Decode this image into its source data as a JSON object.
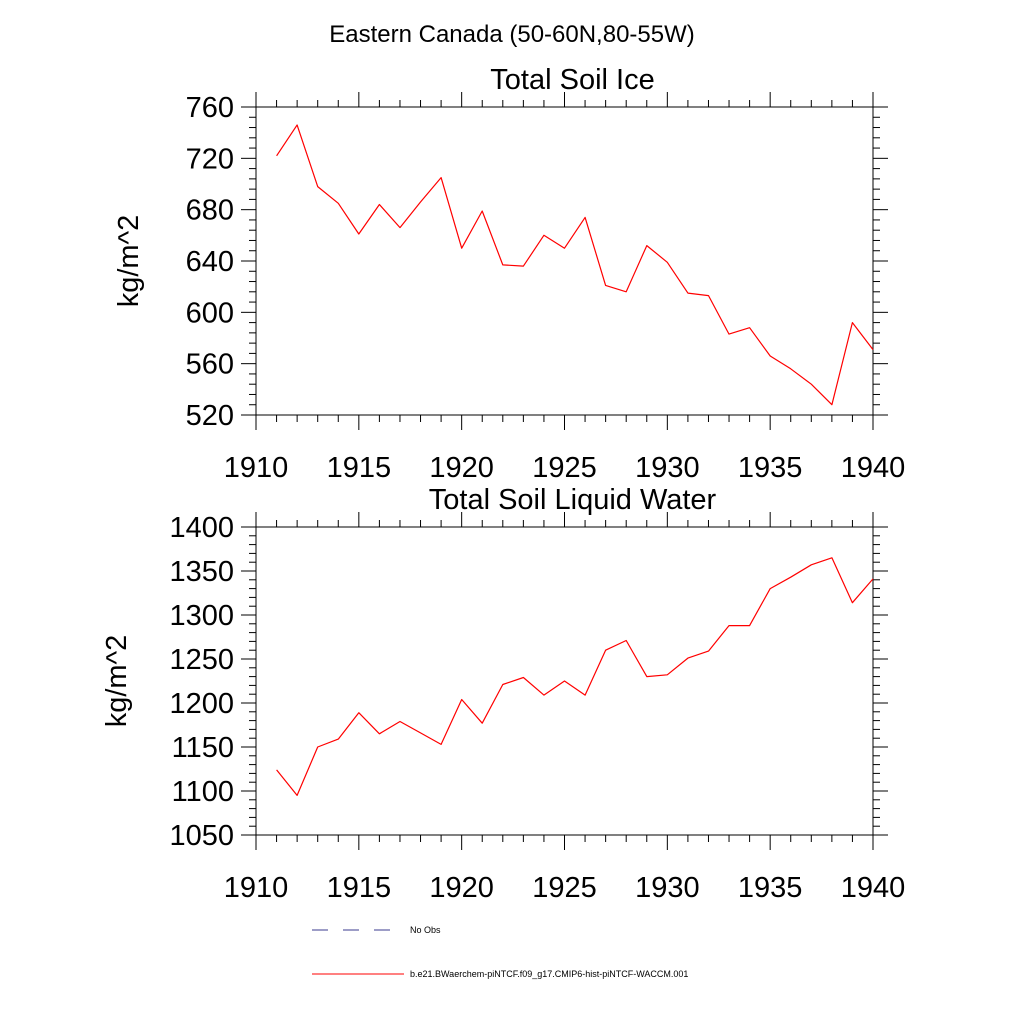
{
  "figure": {
    "title": "Eastern Canada (50-60N,80-55W)"
  },
  "legend": {
    "items": [
      {
        "label": "No Obs",
        "color": "#3b3b8f",
        "style": "dashed"
      },
      {
        "label": "b.e21.BWaerchem-piNTCF.f09_g17.CMIP6-hist-piNTCF-WACCM.001",
        "color": "#ff0000",
        "style": "solid"
      }
    ]
  },
  "chart_data": [
    {
      "type": "line",
      "title": "Total Soil Ice",
      "xlabel": "",
      "ylabel": "kg/m^2",
      "xlim": [
        1910,
        1940
      ],
      "ylim": [
        520,
        760
      ],
      "xticks": [
        1910,
        1915,
        1920,
        1925,
        1930,
        1935,
        1940
      ],
      "yticks": [
        520,
        560,
        600,
        640,
        680,
        720,
        760
      ],
      "grid": false,
      "x": [
        1911,
        1912,
        1913,
        1914,
        1915,
        1916,
        1917,
        1918,
        1919,
        1920,
        1921,
        1922,
        1923,
        1924,
        1925,
        1926,
        1927,
        1928,
        1929,
        1930,
        1931,
        1932,
        1933,
        1934,
        1935,
        1936,
        1937,
        1938,
        1939,
        1940
      ],
      "series": [
        {
          "color": "#ff0000",
          "values": [
            722,
            746,
            698,
            685,
            661,
            684,
            666,
            686,
            705,
            650,
            679,
            637,
            636,
            660,
            650,
            674,
            621,
            616,
            652,
            639,
            615,
            613,
            583,
            588,
            566,
            556,
            544,
            528,
            592,
            571
          ]
        }
      ]
    },
    {
      "type": "line",
      "title": "Total Soil Liquid Water",
      "xlabel": "",
      "ylabel": "kg/m^2",
      "xlim": [
        1910,
        1940
      ],
      "ylim": [
        1050,
        1400
      ],
      "xticks": [
        1910,
        1915,
        1920,
        1925,
        1930,
        1935,
        1940
      ],
      "yticks": [
        1050,
        1100,
        1150,
        1200,
        1250,
        1300,
        1350,
        1400
      ],
      "grid": false,
      "x": [
        1911,
        1912,
        1913,
        1914,
        1915,
        1916,
        1917,
        1918,
        1919,
        1920,
        1921,
        1922,
        1923,
        1924,
        1925,
        1926,
        1927,
        1928,
        1929,
        1930,
        1931,
        1932,
        1933,
        1934,
        1935,
        1936,
        1937,
        1938,
        1939,
        1940
      ],
      "series": [
        {
          "color": "#ff0000",
          "values": [
            1124,
            1095,
            1150,
            1159,
            1189,
            1165,
            1179,
            1166,
            1153,
            1204,
            1177,
            1221,
            1229,
            1209,
            1225,
            1209,
            1260,
            1271,
            1230,
            1232,
            1251,
            1259,
            1288,
            1288,
            1330,
            1343,
            1357,
            1365,
            1314,
            1341
          ]
        }
      ]
    }
  ]
}
